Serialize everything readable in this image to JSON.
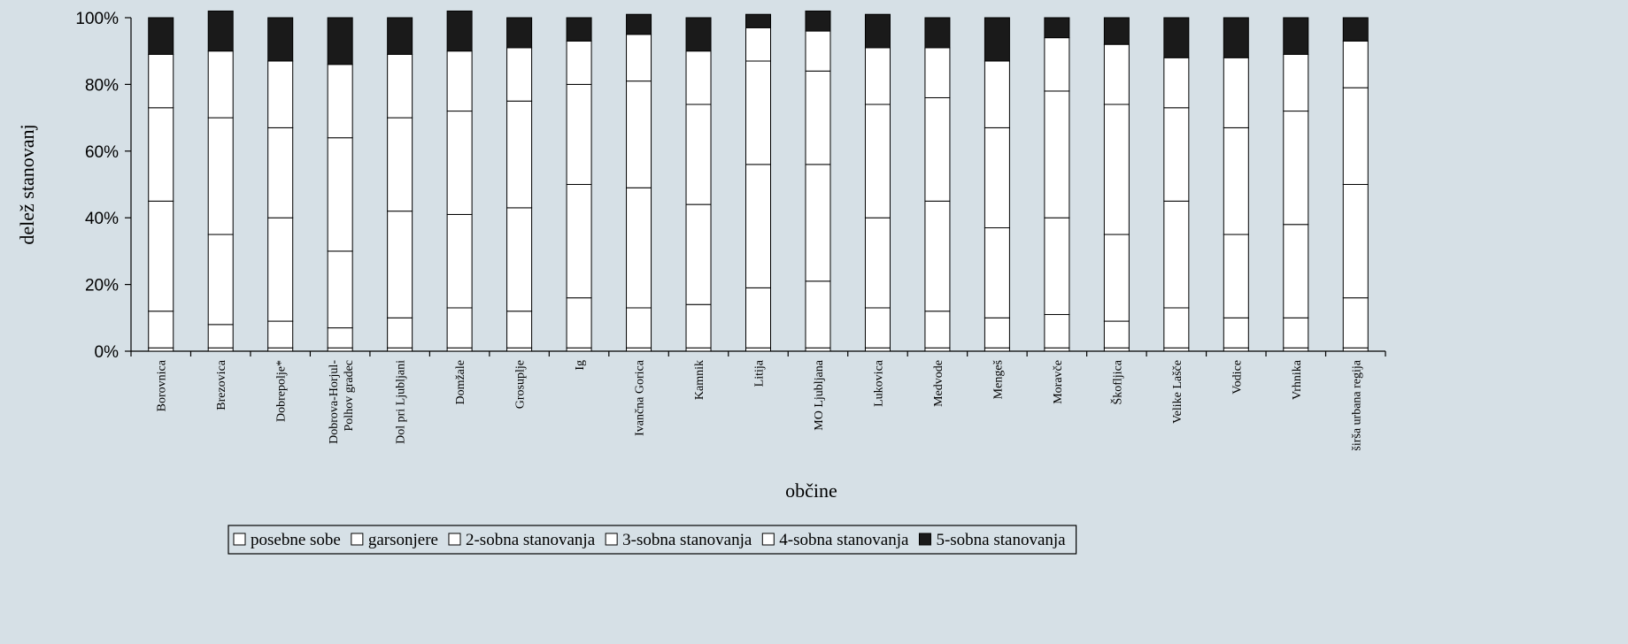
{
  "chart_data": {
    "type": "bar",
    "stacked": true,
    "percent": true,
    "title": "",
    "xlabel": "občine",
    "ylabel": "delež stanovanj",
    "ylim": [
      0,
      100
    ],
    "yticks": [
      "0%",
      "20%",
      "40%",
      "60%",
      "80%",
      "100%"
    ],
    "grid": false,
    "legend_position": "bottom",
    "categories": [
      "Borovnica",
      "Brezovica",
      "Dobrepolje*",
      "Dobrova-Horjul-Polhov gradec",
      "Dol pri Ljubljani",
      "Domžale",
      "Grosuplje",
      "Ig",
      "Ivančna Gorica",
      "Kamnik",
      "Litija",
      "MO Ljubljana",
      "Lukovica",
      "Medvode",
      "Mengeš",
      "Moravče",
      "Škofljica",
      "Velike Lašče",
      "Vodice",
      "Vrhnika",
      "širša urbana regija"
    ],
    "series": [
      {
        "name": "posebne sobe",
        "color": "#ffffff",
        "values": [
          1,
          1,
          1,
          1,
          1,
          1,
          1,
          1,
          1,
          1,
          1,
          1,
          1,
          1,
          1,
          1,
          1,
          1,
          1,
          1,
          1
        ]
      },
      {
        "name": "garsonjere",
        "color": "#ffffff",
        "values": [
          11,
          7,
          8,
          6,
          9,
          12,
          11,
          15,
          12,
          13,
          18,
          20,
          12,
          11,
          9,
          10,
          8,
          12,
          9,
          9,
          15
        ]
      },
      {
        "name": "2-sobna stanovanja",
        "color": "#ffffff",
        "values": [
          33,
          27,
          31,
          23,
          32,
          28,
          31,
          34,
          36,
          30,
          37,
          35,
          27,
          33,
          27,
          29,
          26,
          32,
          25,
          28,
          34
        ]
      },
      {
        "name": "3-sobna stanovanja",
        "color": "#ffffff",
        "values": [
          28,
          35,
          27,
          34,
          28,
          31,
          32,
          30,
          32,
          30,
          31,
          28,
          34,
          31,
          30,
          38,
          39,
          28,
          32,
          34,
          29
        ]
      },
      {
        "name": "4-sobna stanovanja",
        "color": "#ffffff",
        "values": [
          16,
          20,
          20,
          22,
          19,
          18,
          16,
          13,
          14,
          16,
          10,
          12,
          17,
          15,
          20,
          16,
          18,
          15,
          21,
          17,
          14
        ]
      },
      {
        "name": "5-sobna stanovanja",
        "color": "#1a1a1a",
        "values": [
          11,
          12,
          13,
          14,
          11,
          12,
          9,
          7,
          6,
          10,
          4,
          6,
          10,
          9,
          13,
          6,
          8,
          12,
          12,
          11,
          7
        ]
      }
    ]
  }
}
